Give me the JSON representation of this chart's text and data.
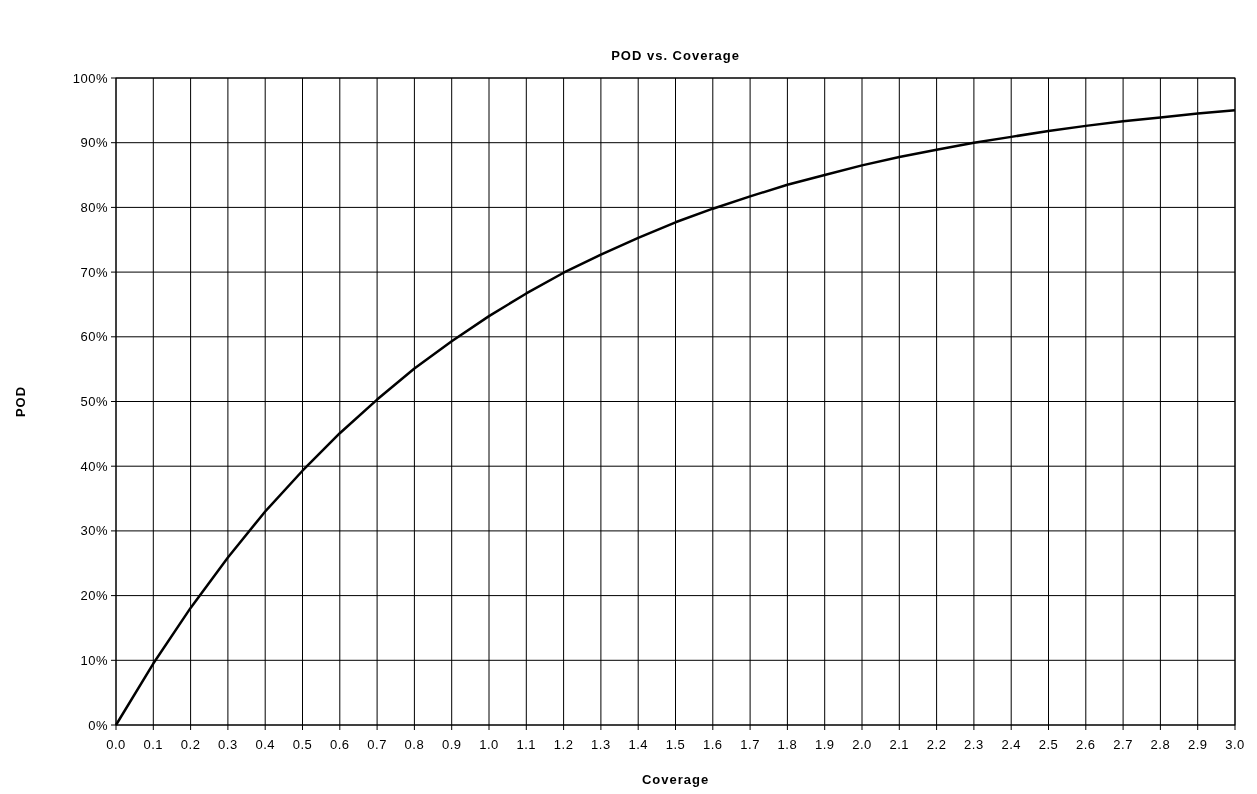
{
  "chart_data": {
    "type": "line",
    "title": "POD vs. Coverage",
    "xlabel": "Coverage",
    "ylabel": "POD",
    "x": [
      0,
      0.1,
      0.2,
      0.3,
      0.4,
      0.5,
      0.6,
      0.7,
      0.8,
      0.9,
      1.0,
      1.1,
      1.2,
      1.3,
      1.4,
      1.5,
      1.6,
      1.7,
      1.8,
      1.9,
      2.0,
      2.1,
      2.2,
      2.3,
      2.4,
      2.5,
      2.6,
      2.7,
      2.8,
      2.9,
      3.0
    ],
    "series": [
      {
        "color": "#000000",
        "values": [
          0,
          9.5,
          18.1,
          25.9,
          33.0,
          39.3,
          45.1,
          50.3,
          55.1,
          59.3,
          63.2,
          66.7,
          69.9,
          72.7,
          75.3,
          77.7,
          79.8,
          81.7,
          83.5,
          85.0,
          86.5,
          87.8,
          88.9,
          90.0,
          90.9,
          91.8,
          92.6,
          93.3,
          93.9,
          94.5,
          95.0
        ]
      }
    ],
    "xlim": [
      0,
      3
    ],
    "xticks": [
      {
        "value": 0,
        "label": "0.0"
      },
      {
        "value": 0.1,
        "label": "0.1"
      },
      {
        "value": 0.2,
        "label": "0.2"
      },
      {
        "value": 0.3,
        "label": "0.3"
      },
      {
        "value": 0.4,
        "label": "0.4"
      },
      {
        "value": 0.5,
        "label": "0.5"
      },
      {
        "value": 0.6,
        "label": "0.6"
      },
      {
        "value": 0.7,
        "label": "0.7"
      },
      {
        "value": 0.8,
        "label": "0.8"
      },
      {
        "value": 0.9,
        "label": "0.9"
      },
      {
        "value": 1,
        "label": "1.0"
      },
      {
        "value": 1.1,
        "label": "1.1"
      },
      {
        "value": 1.2,
        "label": "1.2"
      },
      {
        "value": 1.3,
        "label": "1.3"
      },
      {
        "value": 1.4,
        "label": "1.4"
      },
      {
        "value": 1.5,
        "label": "1.5"
      },
      {
        "value": 1.6,
        "label": "1.6"
      },
      {
        "value": 1.7,
        "label": "1.7"
      },
      {
        "value": 1.8,
        "label": "1.8"
      },
      {
        "value": 1.9,
        "label": "1.9"
      },
      {
        "value": 2,
        "label": "2.0"
      },
      {
        "value": 2.1,
        "label": "2.1"
      },
      {
        "value": 2.2,
        "label": "2.2"
      },
      {
        "value": 2.3,
        "label": "2.3"
      },
      {
        "value": 2.4,
        "label": "2.4"
      },
      {
        "value": 2.5,
        "label": "2.5"
      },
      {
        "value": 2.6,
        "label": "2.6"
      },
      {
        "value": 2.7,
        "label": "2.7"
      },
      {
        "value": 2.8,
        "label": "2.8"
      },
      {
        "value": 2.9,
        "label": "2.9"
      },
      {
        "value": 3,
        "label": "3.0"
      }
    ],
    "ylim": [
      0,
      100
    ],
    "yticks": [
      {
        "value": 0,
        "label": "0%"
      },
      {
        "value": 10,
        "label": "10%"
      },
      {
        "value": 20,
        "label": "20%"
      },
      {
        "value": 30,
        "label": "30%"
      },
      {
        "value": 40,
        "label": "40%"
      },
      {
        "value": 50,
        "label": "50%"
      },
      {
        "value": 60,
        "label": "60%"
      },
      {
        "value": 70,
        "label": "70%"
      },
      {
        "value": 80,
        "label": "80%"
      },
      {
        "value": 90,
        "label": "90%"
      },
      {
        "value": 100,
        "label": "100%"
      }
    ],
    "grid": true,
    "marker": "none",
    "line_style": "solid"
  }
}
